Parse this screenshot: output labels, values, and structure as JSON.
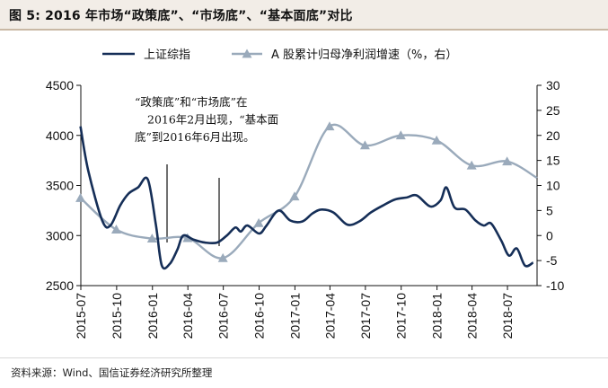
{
  "header": {
    "title": "图 5: 2016 年市场“政策底”、“市场底”、“基本面底”对比"
  },
  "footer": {
    "source": "资料来源：Wind、国信证券经济研究所整理"
  },
  "chart_data": {
    "type": "line",
    "x_ticks": [
      "2015-07",
      "2015-10",
      "2016-01",
      "2016-04",
      "2016-07",
      "2016-10",
      "2017-01",
      "2017-04",
      "2017-07",
      "2017-10",
      "2018-01",
      "2018-04",
      "2018-07"
    ],
    "left_axis": {
      "ticks": [
        4500,
        4000,
        3500,
        3000,
        2500
      ],
      "ylim": [
        2500,
        4500
      ]
    },
    "right_axis": {
      "ticks": [
        30,
        25,
        20,
        15,
        10,
        5,
        0,
        -5,
        -10
      ],
      "ylim": [
        -10,
        30
      ]
    },
    "legend_position": "top",
    "annotation": {
      "lines": [
        "“政策底”和“市场底”在",
        "2016年2月出现，“基本面",
        "底”到2016年6月出现。"
      ]
    },
    "series": [
      {
        "name": "上证综指",
        "axis": "left",
        "color": "#152e57",
        "points": [
          [
            "2015-06-30",
            4090
          ],
          [
            "2015-07-20",
            3650
          ],
          [
            "2015-08-25",
            3150
          ],
          [
            "2015-09-15",
            3100
          ],
          [
            "2015-10-10",
            3300
          ],
          [
            "2015-11-01",
            3420
          ],
          [
            "2015-11-25",
            3480
          ],
          [
            "2015-12-20",
            3560
          ],
          [
            "2016-01-10",
            3100
          ],
          [
            "2016-01-25",
            2700
          ],
          [
            "2016-02-15",
            2720
          ],
          [
            "2016-03-05",
            2860
          ],
          [
            "2016-03-20",
            3000
          ],
          [
            "2016-04-15",
            2960
          ],
          [
            "2016-05-15",
            2930
          ],
          [
            "2016-06-15",
            2930
          ],
          [
            "2016-07-10",
            3000
          ],
          [
            "2016-08-01",
            3080
          ],
          [
            "2016-08-15",
            3040
          ],
          [
            "2016-09-01",
            3100
          ],
          [
            "2016-10-01",
            3020
          ],
          [
            "2016-10-20",
            3100
          ],
          [
            "2016-11-20",
            3250
          ],
          [
            "2016-12-20",
            3150
          ],
          [
            "2017-01-20",
            3140
          ],
          [
            "2017-02-15",
            3220
          ],
          [
            "2017-03-10",
            3260
          ],
          [
            "2017-04-10",
            3230
          ],
          [
            "2017-05-15",
            3110
          ],
          [
            "2017-06-15",
            3140
          ],
          [
            "2017-07-15",
            3230
          ],
          [
            "2017-08-15",
            3300
          ],
          [
            "2017-09-15",
            3360
          ],
          [
            "2017-10-15",
            3380
          ],
          [
            "2017-11-10",
            3400
          ],
          [
            "2017-12-15",
            3290
          ],
          [
            "2018-01-10",
            3350
          ],
          [
            "2018-01-25",
            3480
          ],
          [
            "2018-02-15",
            3280
          ],
          [
            "2018-03-15",
            3260
          ],
          [
            "2018-04-10",
            3150
          ],
          [
            "2018-05-01",
            3100
          ],
          [
            "2018-05-20",
            3120
          ],
          [
            "2018-06-15",
            2950
          ],
          [
            "2018-07-05",
            2800
          ],
          [
            "2018-07-25",
            2870
          ],
          [
            "2018-08-15",
            2700
          ],
          [
            "2018-09-05",
            2730
          ]
        ]
      },
      {
        "name": "A 股累计归母净利润增速（%，右）",
        "axis": "right",
        "color": "#9aaabb",
        "points": [
          [
            "2015-06-30",
            7.5
          ],
          [
            "2015-09-30",
            1.2
          ],
          [
            "2015-12-31",
            -0.6
          ],
          [
            "2016-03-31",
            -0.5
          ],
          [
            "2016-06-30",
            -4.5
          ],
          [
            "2016-09-30",
            2.5
          ],
          [
            "2016-12-31",
            7.8
          ],
          [
            "2017-03-31",
            21.8
          ],
          [
            "2017-06-30",
            18.0
          ],
          [
            "2017-09-30",
            20.0
          ],
          [
            "2017-12-31",
            19.0
          ],
          [
            "2018-03-31",
            14.0
          ],
          [
            "2018-06-30",
            14.8
          ],
          [
            "2018-09-15",
            11.5
          ]
        ],
        "markers": [
          true,
          true,
          true,
          true,
          true,
          true,
          true,
          true,
          true,
          true,
          true,
          true,
          true,
          false
        ]
      }
    ]
  }
}
